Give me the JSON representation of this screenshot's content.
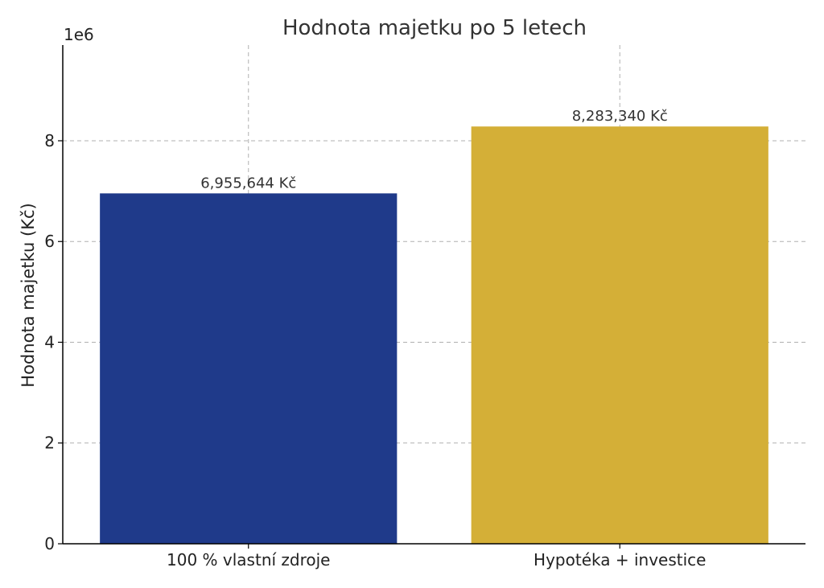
{
  "chart_data": {
    "type": "bar",
    "title": "Hodnota majetku po 5 letech",
    "xlabel": "",
    "ylabel": "Hodnota majetku (Kč)",
    "y_offset_label": "1e6",
    "categories": [
      "100 % vlastní zdroje",
      "Hypotéka + investice"
    ],
    "values": [
      6955644,
      8283340
    ],
    "data_labels": [
      "6,955,644 Kč",
      "8,283,340 Kč"
    ],
    "colors": [
      "#1f3a8a",
      "#d4af37"
    ],
    "ylim": [
      0,
      9900000
    ],
    "y_ticks": [
      0,
      2000000,
      4000000,
      6000000,
      8000000
    ],
    "y_tick_labels": [
      "0",
      "2",
      "4",
      "6",
      "8"
    ],
    "grid": true
  }
}
